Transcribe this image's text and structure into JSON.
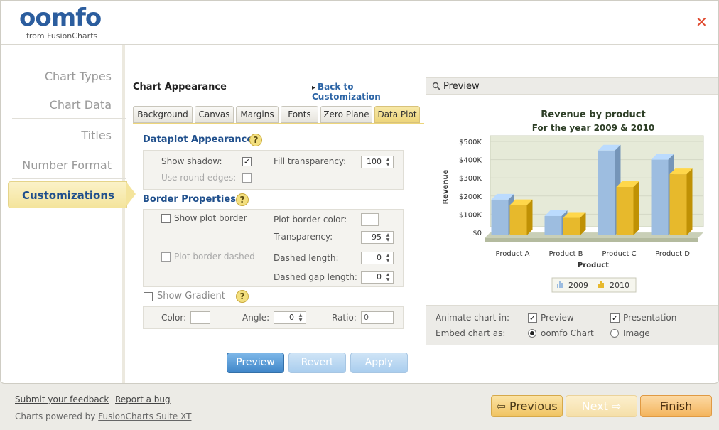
{
  "header": {
    "logo_text": "oomfo",
    "logo_sub": "from FusionCharts"
  },
  "sidebar": {
    "items": [
      {
        "label": "Chart Types"
      },
      {
        "label": "Chart Data"
      },
      {
        "label": "Titles"
      },
      {
        "label": "Number Format"
      },
      {
        "label": "Customizations"
      }
    ],
    "active_index": 4
  },
  "main": {
    "section_title": "Chart Appearance",
    "back_link": "Back to Customization",
    "tabs": [
      "Background",
      "Canvas",
      "Margins",
      "Fonts",
      "Zero Plane",
      "Data Plot"
    ],
    "active_tab": "Data Plot",
    "dataplot": {
      "title": "Dataplot Appearance",
      "show_shadow_label": "Show shadow:",
      "show_shadow": true,
      "fill_transparency_label": "Fill transparency:",
      "fill_transparency": "100",
      "round_edges_label": "Use round edges:",
      "round_edges": false
    },
    "border": {
      "title": "Border Properties",
      "show_plot_border_label": "Show plot border",
      "show_plot_border": false,
      "color_label": "Plot border color:",
      "transparency_label": "Transparency:",
      "transparency": "95",
      "dashed_label": "Plot border dashed",
      "dashed": false,
      "dashed_length_label": "Dashed length:",
      "dashed_length": "0",
      "dashed_gap_label": "Dashed gap length:",
      "dashed_gap": "0"
    },
    "gradient": {
      "title": "Show Gradient",
      "enabled": false,
      "color_label": "Color:",
      "angle_label": "Angle:",
      "angle": "0",
      "ratio_label": "Ratio:",
      "ratio": "0"
    },
    "buttons": {
      "preview": "Preview",
      "revert": "Revert",
      "apply": "Apply"
    }
  },
  "preview": {
    "title": "Preview",
    "animate_label": "Animate chart in:",
    "animate_preview_label": "Preview",
    "animate_preview": true,
    "animate_presentation_label": "Presentation",
    "animate_presentation": true,
    "embed_label": "Embed chart as:",
    "embed_options": [
      "oomfo Chart",
      "Image"
    ],
    "embed_selected": "oomfo Chart"
  },
  "chart_data": {
    "type": "bar",
    "title": "Revenue by product",
    "subtitle": "For the year 2009 & 2010",
    "xlabel": "Product",
    "ylabel": "Revenue",
    "categories": [
      "Product A",
      "Product B",
      "Product C",
      "Product D"
    ],
    "series": [
      {
        "name": "2009",
        "values": [
          180000,
          90000,
          450000,
          400000
        ],
        "color": "#9dbde0"
      },
      {
        "name": "2010",
        "values": [
          150000,
          80000,
          250000,
          320000
        ],
        "color": "#e7b92c"
      }
    ],
    "y_ticks": [
      "$0",
      "$100K",
      "$200K",
      "$300K",
      "$400K",
      "$500K"
    ],
    "ylim": [
      0,
      500000
    ],
    "legend_position": "bottom",
    "style": "3d"
  },
  "footer": {
    "feedback": "Submit your feedback",
    "bug": "Report a bug",
    "powered_prefix": "Charts powered by",
    "powered_link": "FusionCharts Suite XT",
    "previous": "Previous",
    "next": "Next",
    "finish": "Finish"
  },
  "colors": {
    "accent": "#1f4f8c",
    "link": "#2d65a6",
    "close": "#e04a2f"
  }
}
